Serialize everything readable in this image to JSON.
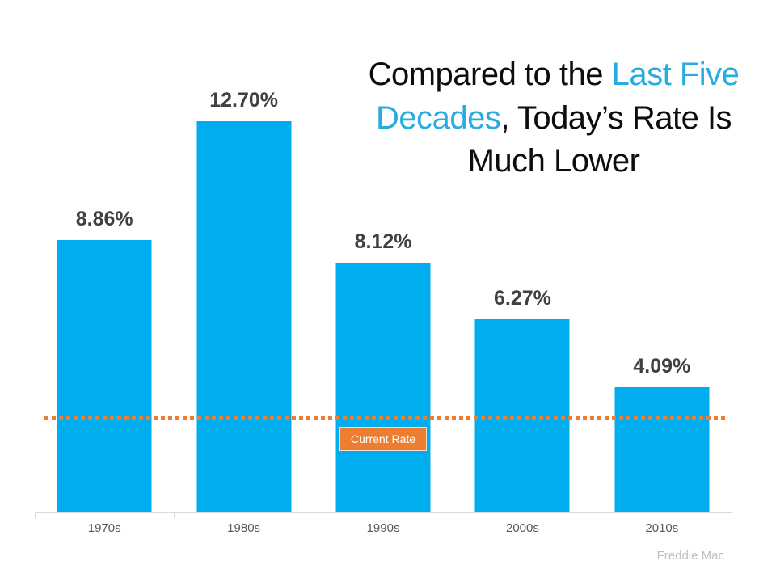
{
  "title": {
    "full_text": "Compared to the Last Five Decades, Today’s Rate Is Much Lower",
    "lines": [
      {
        "segments": [
          {
            "text": "Compared to the "
          },
          {
            "text": "Last Five"
          }
        ]
      },
      {
        "segments": [
          {
            "text": "Decades"
          },
          {
            "text": ", Today’s Rate Is"
          }
        ]
      },
      {
        "segments": [
          {
            "text": "Much Lower"
          }
        ]
      }
    ],
    "accent_color": "#29ABE2",
    "text_color": "#0d0d0d"
  },
  "chart_data": {
    "type": "bar",
    "categories": [
      "1970s",
      "1980s",
      "1990s",
      "2000s",
      "2010s"
    ],
    "values": [
      8.86,
      12.7,
      8.12,
      6.27,
      4.09
    ],
    "value_labels": [
      "8.86%",
      "12.70%",
      "8.12%",
      "6.27%",
      "4.09%"
    ],
    "title": "Compared to the Last Five Decades, Today’s Rate Is Much Lower",
    "xlabel": "",
    "ylabel": "",
    "ylim": [
      0,
      13.5
    ],
    "grid": false,
    "legend": "none",
    "bar_color": "#00AEEF",
    "value_label_color": "#404040",
    "axis_label_color": "#595959",
    "annotations": [
      {
        "type": "horizontal-dashed-line",
        "label": "Current Rate",
        "approx_value": 3.05,
        "color": "#ED7D31"
      }
    ]
  },
  "annotation": {
    "current_rate_label": "Current Rate",
    "badge_bg": "#ED7D31",
    "badge_text_color": "#ffffff"
  },
  "source": {
    "label": "Freddie Mac",
    "color": "#BFBFBF"
  }
}
